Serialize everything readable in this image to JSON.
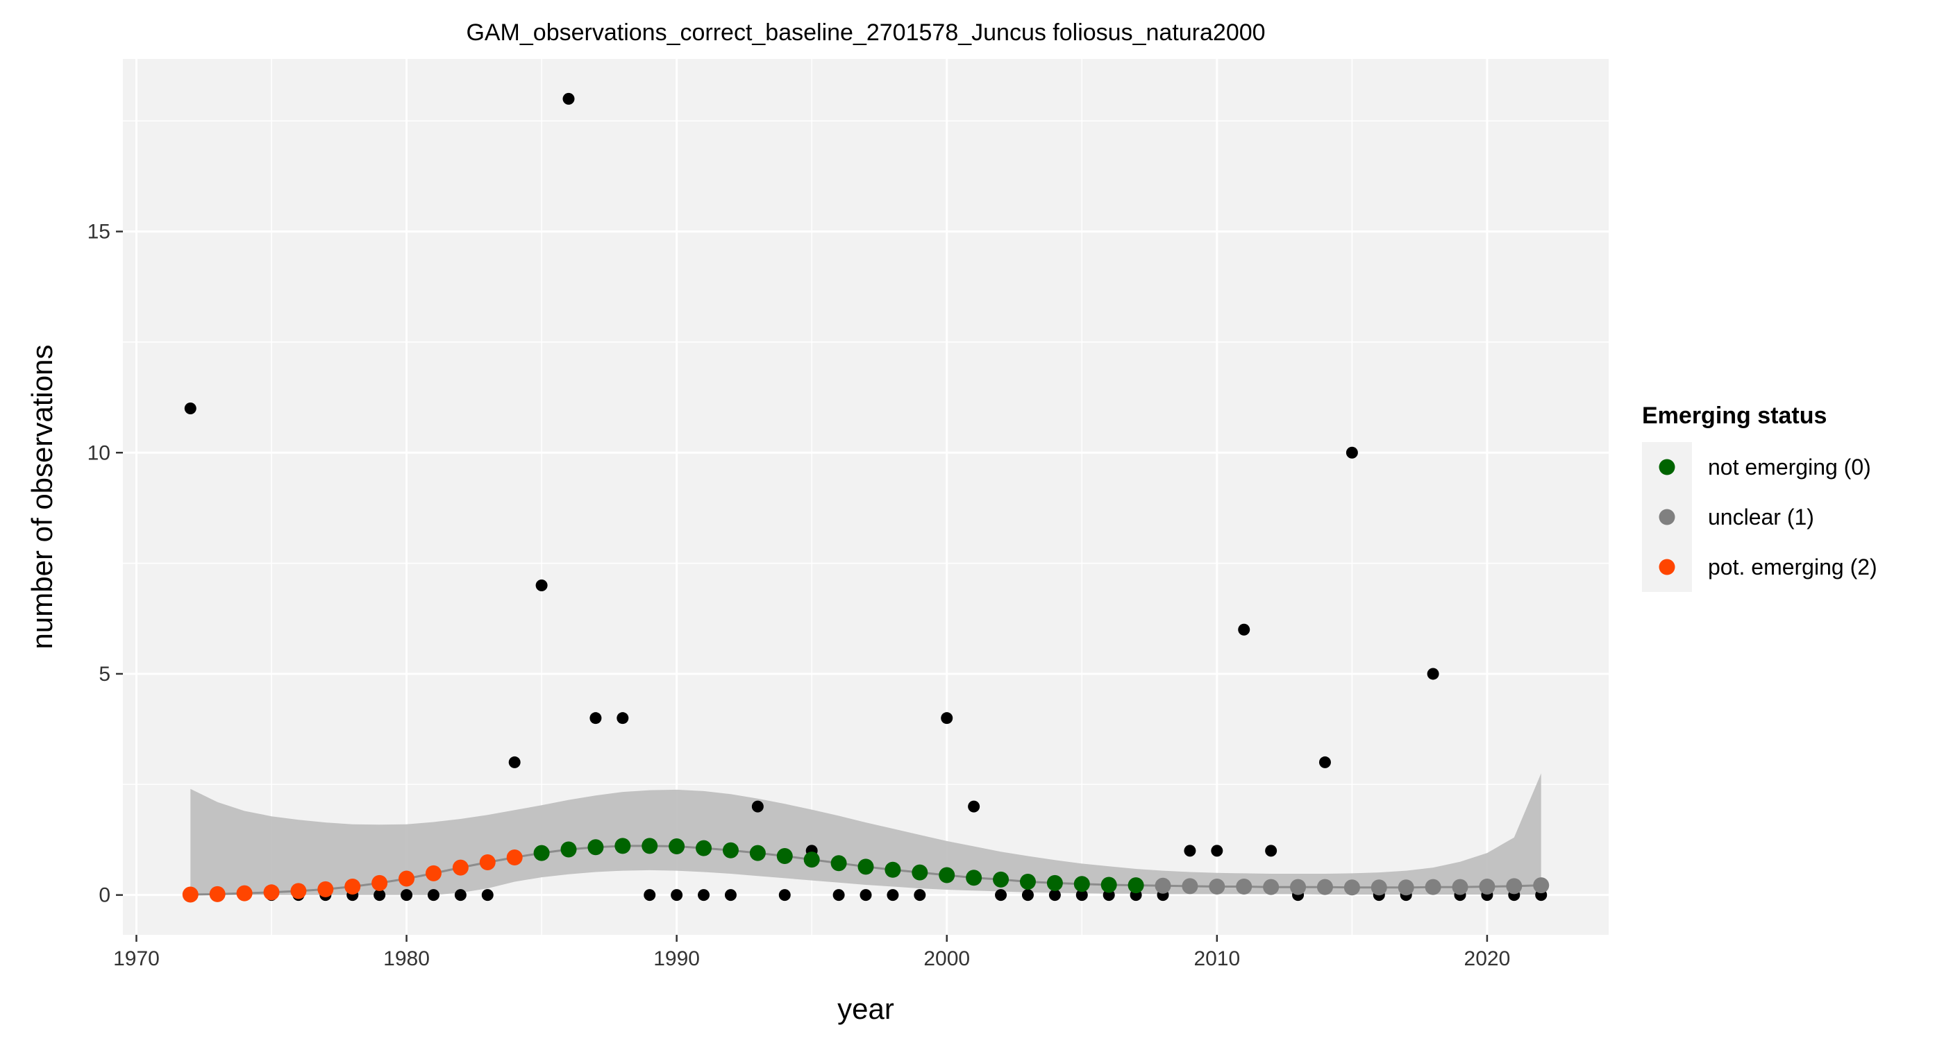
{
  "chart_data": {
    "type": "scatter",
    "title": "GAM_observations_correct_baseline_2701578_Juncus foliosus_natura2000",
    "xlabel": "year",
    "ylabel": "number of observations",
    "xlim": [
      1969.5,
      2024.5
    ],
    "ylim": [
      -0.9,
      18.9
    ],
    "x_ticks": [
      1970,
      1980,
      1990,
      2000,
      2010,
      2020
    ],
    "y_ticks": [
      0,
      5,
      10,
      15
    ],
    "grid": true,
    "legend_position": "right",
    "legend_title": "Emerging status",
    "colors": {
      "panel_bg": "#f2f2f2",
      "grid": "#ffffff",
      "observed": "#000000",
      "ribbon": "#bdbdbd",
      "fit_line": "#8c8c8c",
      "status_0": "#006400",
      "status_1": "#808080",
      "status_2": "#ff4500"
    },
    "legend": [
      {
        "label": "not emerging (0)",
        "status": 0
      },
      {
        "label": "unclear (1)",
        "status": 1
      },
      {
        "label": "pot. emerging (2)",
        "status": 2
      }
    ],
    "observed": {
      "x": [
        1972,
        1973,
        1974,
        1975,
        1976,
        1977,
        1978,
        1979,
        1980,
        1981,
        1982,
        1983,
        1984,
        1985,
        1986,
        1987,
        1988,
        1989,
        1990,
        1991,
        1992,
        1993,
        1994,
        1995,
        1996,
        1997,
        1998,
        1999,
        2000,
        2001,
        2002,
        2003,
        2004,
        2005,
        2006,
        2007,
        2008,
        2009,
        2010,
        2011,
        2012,
        2013,
        2014,
        2015,
        2016,
        2017,
        2018,
        2019,
        2020,
        2021,
        2022
      ],
      "y": [
        11,
        0,
        0,
        0,
        0,
        0,
        0,
        0,
        0,
        0,
        0,
        0,
        3,
        7,
        18,
        4,
        4,
        0,
        0,
        0,
        0,
        2,
        0,
        1,
        0,
        0,
        0,
        0,
        4,
        2,
        0,
        0,
        0,
        0,
        0,
        0,
        0,
        1,
        1,
        6,
        1,
        0,
        3,
        10,
        0,
        0,
        5,
        0,
        0,
        0,
        0
      ]
    },
    "fit": {
      "x": [
        1972,
        1973,
        1974,
        1975,
        1976,
        1977,
        1978,
        1979,
        1980,
        1981,
        1982,
        1983,
        1984,
        1985,
        1986,
        1987,
        1988,
        1989,
        1990,
        1991,
        1992,
        1993,
        1994,
        1995,
        1996,
        1997,
        1998,
        1999,
        2000,
        2001,
        2002,
        2003,
        2004,
        2005,
        2006,
        2007,
        2008,
        2009,
        2010,
        2011,
        2012,
        2013,
        2014,
        2015,
        2016,
        2017,
        2018,
        2019,
        2020,
        2021,
        2022
      ],
      "y": [
        0.01,
        0.02,
        0.04,
        0.06,
        0.09,
        0.13,
        0.19,
        0.27,
        0.37,
        0.49,
        0.62,
        0.74,
        0.85,
        0.95,
        1.03,
        1.08,
        1.11,
        1.11,
        1.1,
        1.06,
        1.01,
        0.95,
        0.88,
        0.8,
        0.72,
        0.64,
        0.57,
        0.51,
        0.45,
        0.39,
        0.35,
        0.3,
        0.27,
        0.25,
        0.23,
        0.22,
        0.21,
        0.2,
        0.19,
        0.19,
        0.18,
        0.18,
        0.18,
        0.17,
        0.17,
        0.17,
        0.18,
        0.18,
        0.19,
        0.2,
        0.22
      ],
      "lower": [
        0,
        0,
        0,
        0,
        0,
        0,
        0,
        0,
        0,
        0,
        0.05,
        0.15,
        0.3,
        0.4,
        0.47,
        0.52,
        0.55,
        0.56,
        0.55,
        0.52,
        0.48,
        0.43,
        0.38,
        0.33,
        0.28,
        0.23,
        0.19,
        0.15,
        0.12,
        0.1,
        0.08,
        0.06,
        0.05,
        0.04,
        0.03,
        0.03,
        0.02,
        0.02,
        0.02,
        0.02,
        0.02,
        0.02,
        0.01,
        0.01,
        0.01,
        0.01,
        0.01,
        0.01,
        0.01,
        0.01,
        0.01
      ],
      "upper": [
        2.4,
        2.1,
        1.9,
        1.78,
        1.7,
        1.64,
        1.6,
        1.59,
        1.6,
        1.65,
        1.72,
        1.81,
        1.92,
        2.03,
        2.15,
        2.25,
        2.33,
        2.37,
        2.38,
        2.35,
        2.28,
        2.18,
        2.06,
        1.93,
        1.79,
        1.64,
        1.5,
        1.36,
        1.22,
        1.1,
        0.98,
        0.88,
        0.79,
        0.71,
        0.65,
        0.59,
        0.55,
        0.52,
        0.5,
        0.49,
        0.48,
        0.48,
        0.48,
        0.49,
        0.51,
        0.55,
        0.62,
        0.75,
        0.95,
        1.3,
        2.75
      ],
      "status": [
        2,
        2,
        2,
        2,
        2,
        2,
        2,
        2,
        2,
        2,
        2,
        2,
        2,
        0,
        0,
        0,
        0,
        0,
        0,
        0,
        0,
        0,
        0,
        0,
        0,
        0,
        0,
        0,
        0,
        0,
        0,
        0,
        0,
        0,
        0,
        0,
        1,
        1,
        1,
        1,
        1,
        1,
        1,
        1,
        1,
        1,
        1,
        1,
        1,
        1,
        1
      ]
    }
  }
}
